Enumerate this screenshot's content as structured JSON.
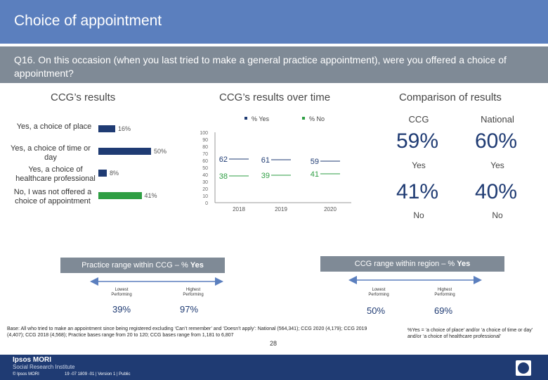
{
  "header": {
    "title": "Choice of appointment"
  },
  "question": {
    "text": "Q16. On this occasion (when you last tried to make a general practice appointment), were you offered a choice of appointment?"
  },
  "ccg_results": {
    "title": "CCG’s results",
    "bars": [
      {
        "label": "Yes, a choice of place",
        "value": 16,
        "display": "16%"
      },
      {
        "label": "Yes, a choice of time or day",
        "value": 50,
        "display": "50%"
      },
      {
        "label": "Yes, a choice of healthcare professional",
        "value": 8,
        "display": "8%"
      },
      {
        "label": "No, I was not offered a choice of appointment",
        "value": 41,
        "display": "41%"
      }
    ]
  },
  "chart_data": [
    {
      "type": "bar",
      "title": "CCG’s results",
      "categories": [
        "Yes, a choice of place",
        "Yes, a choice of time or day",
        "Yes, a choice of healthcare professional",
        "No, I was not offered a choice of appointment"
      ],
      "values": [
        16,
        50,
        8,
        41
      ],
      "xlabel": "",
      "ylabel": ""
    },
    {
      "type": "line",
      "title": "CCG’s results over time",
      "x": [
        "2018",
        "2019",
        "2020"
      ],
      "series": [
        {
          "name": "% Yes",
          "values": [
            62,
            61,
            59
          ],
          "color": "#1f3b73"
        },
        {
          "name": "% No",
          "values": [
            38,
            39,
            41
          ],
          "color": "#2e9e43"
        }
      ],
      "yticks": [
        "100",
        "90",
        "80",
        "70",
        "60",
        "50",
        "40",
        "30",
        "20",
        "10",
        "0"
      ],
      "ylim": [
        0,
        100
      ],
      "legend": [
        "% Yes",
        "% No"
      ]
    }
  ],
  "comparison": {
    "title": "Comparison of results",
    "col_ccg": "CCG",
    "col_national": "National",
    "yes_ccg": "59%",
    "yes_national": "60%",
    "yes_label": "Yes",
    "no_ccg": "41%",
    "no_national": "40%",
    "no_label": "No"
  },
  "practice_range": {
    "label": "Practice range within CCG – % ",
    "label_bold": "Yes",
    "lowest_label": "Lowest Performing",
    "lowest_value": "39%",
    "highest_label": "Highest Performing",
    "highest_value": "97%"
  },
  "region_range": {
    "label": "CCG range within region – % ",
    "label_bold": "Yes",
    "lowest_label": "Lowest Performing",
    "lowest_value": "50%",
    "highest_label": "Highest Performing",
    "highest_value": "69%"
  },
  "base_note": "Base: All who tried to make an appointment since being registered excluding ‘Can’t remember’ and ‘Doesn’t apply’: National (564,341); CCG 2020 (4,179); CCG 2019 (4,407); CCG 2018 (4,568); Practice bases range from 20 to 120; CCG bases range from 1,181 to 6,807",
  "yes_note": "%Yes = ‘a choice of place’ and/or ‘a choice of time or day’ and/or ‘a choice of healthcare professional’",
  "footer": {
    "brand": "Ipsos MORI",
    "brand_sub": "Social Research Institute",
    "copyright": "© Ipsos MORI",
    "doc_id": "19 -07 1809 -01 | Version 1 | Public",
    "page_number": "28"
  }
}
